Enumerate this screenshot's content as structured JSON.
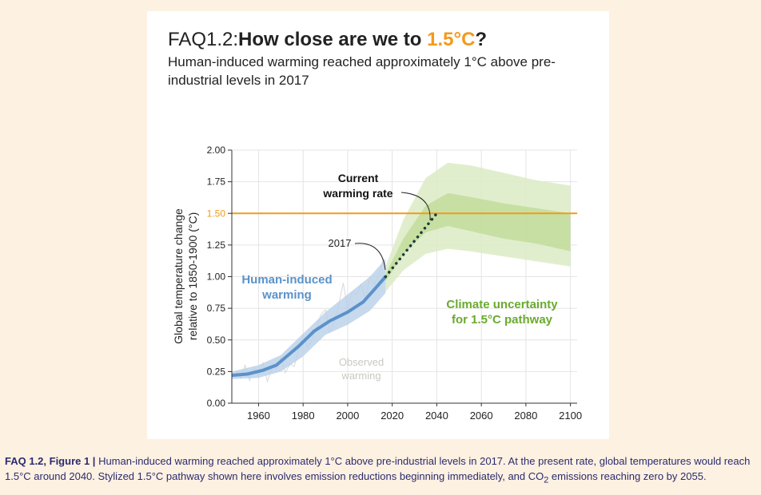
{
  "header": {
    "prefix": "FAQ1.2:",
    "question_start": "How close are we to ",
    "question_highlight": "1.5°C",
    "question_end": "?",
    "subtitle": "Human-induced warming reached approximately 1°C above pre-industrial levels in 2017"
  },
  "caption": {
    "label": "FAQ 1.2, Figure 1 |",
    "text_before_sub": " Human-induced warming reached approximately 1°C above pre-industrial levels in 2017. At the present rate, global temperatures would reach 1.5°C around 2040. Stylized 1.5°C pathway shown here involves emission reductions beginning immediately, and CO",
    "sub": "2",
    "text_after_sub": " emissions reaching zero by 2055."
  },
  "colors": {
    "blue": "#5b92c9",
    "blue_band": "#b9cfe8",
    "green_light": "#dcebc4",
    "green_dark": "#c2dc9b",
    "orange": "#f39a1a",
    "green_text": "#6aaa2e",
    "dots": "#1d3b3b",
    "grid": "#e4e4e4",
    "observed": "#d9d9d9"
  },
  "chart_data": {
    "type": "line",
    "ylabel_line1": "Global temperature change",
    "ylabel_line2": "relative to 1850-1900 (°C)",
    "xlim": [
      1948,
      2103
    ],
    "ylim": [
      0,
      2.0
    ],
    "x_ticks": [
      1960,
      1980,
      2000,
      2020,
      2040,
      2060,
      2080,
      2100
    ],
    "y_ticks": [
      "0.00",
      "0.25",
      "0.50",
      "0.75",
      "1.00",
      "1.25",
      "1.50",
      "1.75",
      "2.00"
    ],
    "target_level": 1.5,
    "target_label": "1.50",
    "human_induced": {
      "label_line1": "Human-induced",
      "label_line2": "warming",
      "points": [
        [
          1948,
          0.22
        ],
        [
          1955,
          0.23
        ],
        [
          1962,
          0.26
        ],
        [
          1968,
          0.3
        ],
        [
          1972,
          0.36
        ],
        [
          1978,
          0.45
        ],
        [
          1985,
          0.57
        ],
        [
          1992,
          0.65
        ],
        [
          2000,
          0.72
        ],
        [
          2007,
          0.8
        ],
        [
          2012,
          0.9
        ],
        [
          2017,
          1.0
        ]
      ],
      "band_upper": [
        [
          1948,
          0.25
        ],
        [
          1960,
          0.3
        ],
        [
          1970,
          0.38
        ],
        [
          1980,
          0.55
        ],
        [
          1990,
          0.72
        ],
        [
          2000,
          0.86
        ],
        [
          2010,
          1.0
        ],
        [
          2017,
          1.14
        ]
      ],
      "band_lower": [
        [
          1948,
          0.19
        ],
        [
          1960,
          0.2
        ],
        [
          1970,
          0.25
        ],
        [
          1980,
          0.37
        ],
        [
          1990,
          0.54
        ],
        [
          2000,
          0.62
        ],
        [
          2010,
          0.73
        ],
        [
          2017,
          0.87
        ]
      ]
    },
    "projection": {
      "points": [
        [
          2017,
          1.0
        ],
        [
          2040,
          1.5
        ]
      ],
      "label_line1": "Current",
      "label_line2": "warming rate"
    },
    "annotation_2017": "2017",
    "observed": {
      "label_line1": "Observed",
      "label_line2": "warming",
      "points": [
        [
          1950,
          0.25
        ],
        [
          1952,
          0.2
        ],
        [
          1954,
          0.3
        ],
        [
          1956,
          0.18
        ],
        [
          1958,
          0.28
        ],
        [
          1960,
          0.22
        ],
        [
          1962,
          0.32
        ],
        [
          1964,
          0.17
        ],
        [
          1966,
          0.29
        ],
        [
          1968,
          0.27
        ],
        [
          1970,
          0.36
        ],
        [
          1972,
          0.24
        ],
        [
          1974,
          0.31
        ],
        [
          1976,
          0.29
        ],
        [
          1978,
          0.42
        ],
        [
          1980,
          0.54
        ],
        [
          1982,
          0.44
        ],
        [
          1984,
          0.5
        ],
        [
          1986,
          0.6
        ],
        [
          1988,
          0.7
        ],
        [
          1990,
          0.74
        ],
        [
          1992,
          0.56
        ],
        [
          1994,
          0.64
        ],
        [
          1996,
          0.78
        ],
        [
          1998,
          0.95
        ],
        [
          2000,
          0.74
        ],
        [
          2002,
          0.88
        ],
        [
          2004,
          0.86
        ],
        [
          2006,
          0.94
        ],
        [
          2008,
          0.82
        ],
        [
          2010,
          1.0
        ],
        [
          2012,
          0.94
        ],
        [
          2014,
          1.02
        ],
        [
          2016,
          1.14
        ],
        [
          2017,
          1.08
        ]
      ]
    },
    "uncertainty": {
      "label_line1": "Climate uncertainty",
      "label_line2": "for 1.5°C pathway",
      "outer_upper": [
        [
          2017,
          1.08
        ],
        [
          2025,
          1.45
        ],
        [
          2035,
          1.78
        ],
        [
          2045,
          1.9
        ],
        [
          2055,
          1.88
        ],
        [
          2070,
          1.82
        ],
        [
          2085,
          1.76
        ],
        [
          2100,
          1.72
        ]
      ],
      "outer_lower": [
        [
          2017,
          0.88
        ],
        [
          2025,
          1.05
        ],
        [
          2035,
          1.18
        ],
        [
          2045,
          1.22
        ],
        [
          2055,
          1.2
        ],
        [
          2070,
          1.16
        ],
        [
          2085,
          1.12
        ],
        [
          2100,
          1.08
        ]
      ],
      "inner_upper": [
        [
          2017,
          1.02
        ],
        [
          2025,
          1.3
        ],
        [
          2035,
          1.56
        ],
        [
          2045,
          1.66
        ],
        [
          2055,
          1.63
        ],
        [
          2070,
          1.58
        ],
        [
          2085,
          1.54
        ],
        [
          2100,
          1.5
        ]
      ],
      "inner_lower": [
        [
          2017,
          0.96
        ],
        [
          2025,
          1.18
        ],
        [
          2035,
          1.35
        ],
        [
          2045,
          1.4
        ],
        [
          2055,
          1.36
        ],
        [
          2070,
          1.3
        ],
        [
          2085,
          1.26
        ],
        [
          2100,
          1.2
        ]
      ]
    }
  }
}
